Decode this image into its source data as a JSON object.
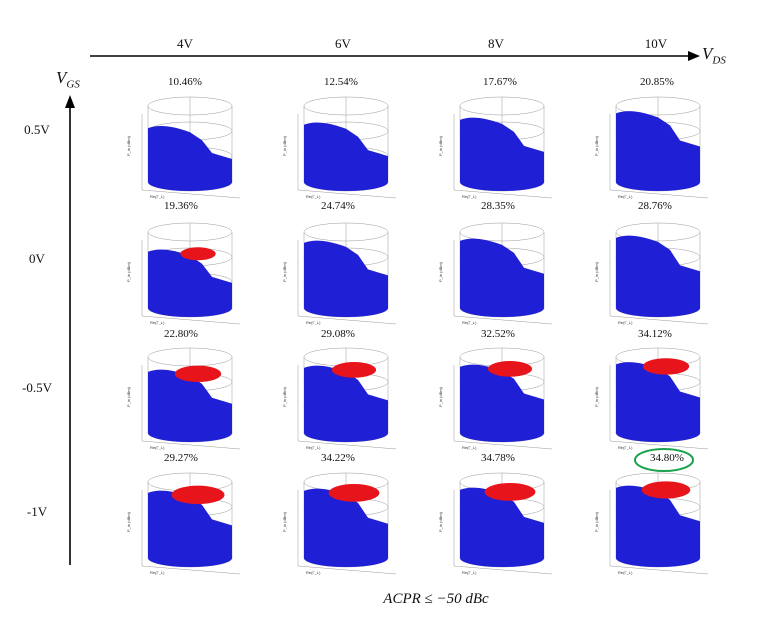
{
  "axes": {
    "x_title_main": "V",
    "x_title_sub": "DS",
    "y_title_main": "V",
    "y_title_sub": "GS"
  },
  "columns": [
    "4V",
    "6V",
    "8V",
    "10V"
  ],
  "rows": [
    "0.5V",
    "0V",
    "-0.5V",
    "-1V"
  ],
  "cells": [
    [
      {
        "pct": "10.46%",
        "red": 0,
        "fill": 0.55
      },
      {
        "pct": "12.54%",
        "red": 0,
        "fill": 0.62
      },
      {
        "pct": "17.67%",
        "red": 0,
        "fill": 0.72
      },
      {
        "pct": "20.85%",
        "red": 0,
        "fill": 0.85
      }
    ],
    [
      {
        "pct": "19.36%",
        "red": 0.35,
        "fill": 0.6
      },
      {
        "pct": "24.74%",
        "red": 0,
        "fill": 0.78
      },
      {
        "pct": "28.35%",
        "red": 0,
        "fill": 0.82
      },
      {
        "pct": "28.76%",
        "red": 0,
        "fill": 0.88
      }
    ],
    [
      {
        "pct": "22.80%",
        "red": 0.6,
        "fill": 0.7
      },
      {
        "pct": "29.08%",
        "red": 0.55,
        "fill": 0.78
      },
      {
        "pct": "32.52%",
        "red": 0.55,
        "fill": 0.8
      },
      {
        "pct": "34.12%",
        "red": 0.6,
        "fill": 0.85
      }
    ],
    [
      {
        "pct": "29.27%",
        "red": 0.75,
        "fill": 0.78
      },
      {
        "pct": "34.22%",
        "red": 0.7,
        "fill": 0.82
      },
      {
        "pct": "34.78%",
        "red": 0.7,
        "fill": 0.84
      },
      {
        "pct": "34.80%",
        "red": 0.65,
        "fill": 0.88
      }
    ]
  ],
  "highlight": {
    "row": 3,
    "col": 3,
    "color": "#1aa34a"
  },
  "colors": {
    "surface_blue": "#1f1fd6",
    "region_red": "#e8141c",
    "wire": "#9a9a9a"
  },
  "bottom_label": "ACPR ≤ −50 dBc",
  "plot_labels": {
    "y_axis": "P_in (dBm)",
    "x_axis": "Re(Γ_L)"
  }
}
